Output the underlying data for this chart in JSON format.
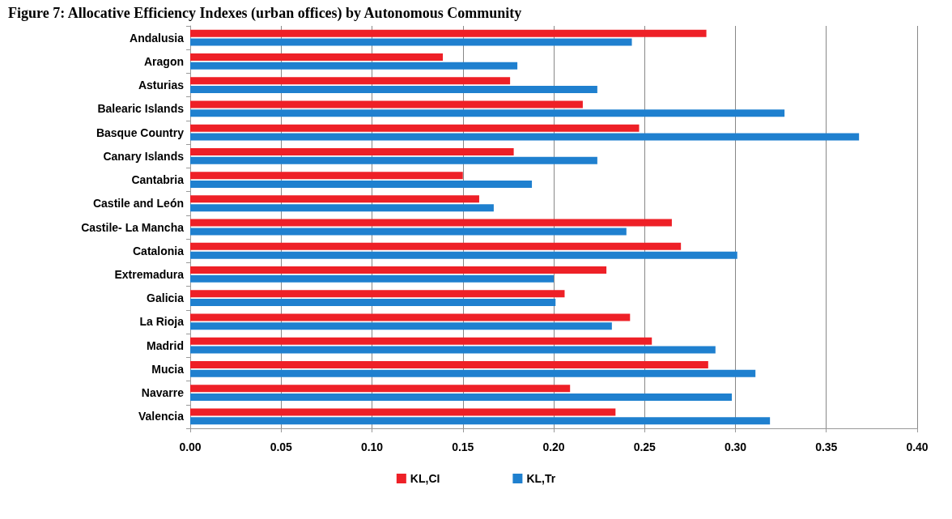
{
  "chart_data": {
    "type": "bar",
    "orientation": "horizontal",
    "title": "Figure 7: Allocative Efficiency Indexes (urban offices) by Autonomous Community",
    "categories": [
      "Andalusia",
      "Aragon",
      "Asturias",
      "Balearic Islands",
      "Basque Country",
      "Canary Islands",
      "Cantabria",
      "Castile and León",
      "Castile- La Mancha",
      "Catalonia",
      "Extremadura",
      "Galicia",
      "La Rioja",
      "Madrid",
      "Mucia",
      "Navarre",
      "Valencia"
    ],
    "series": [
      {
        "name": "KL,CI",
        "color": "#ee2027",
        "values": [
          0.284,
          0.139,
          0.176,
          0.216,
          0.247,
          0.178,
          0.15,
          0.159,
          0.265,
          0.27,
          0.229,
          0.206,
          0.242,
          0.254,
          0.285,
          0.209,
          0.234
        ]
      },
      {
        "name": "KL,Tr",
        "color": "#1f80cf",
        "values": [
          0.243,
          0.18,
          0.224,
          0.327,
          0.368,
          0.224,
          0.188,
          0.167,
          0.24,
          0.301,
          0.2,
          0.201,
          0.232,
          0.289,
          0.311,
          0.298,
          0.319
        ]
      }
    ],
    "xlim": [
      0,
      0.4
    ],
    "xticks": [
      {
        "value": 0,
        "label": "0.00"
      },
      {
        "value": 0.05,
        "label": "0.05"
      },
      {
        "value": 0.1,
        "label": "0.10"
      },
      {
        "value": 0.15,
        "label": "0.15"
      },
      {
        "value": 0.2,
        "label": "0.20"
      },
      {
        "value": 0.25,
        "label": "0.25"
      },
      {
        "value": 0.3,
        "label": "0.30"
      },
      {
        "value": 0.35,
        "label": "0.35"
      },
      {
        "value": 0.4,
        "label": "0.40"
      }
    ],
    "grid": "x",
    "legend": "bottom"
  }
}
